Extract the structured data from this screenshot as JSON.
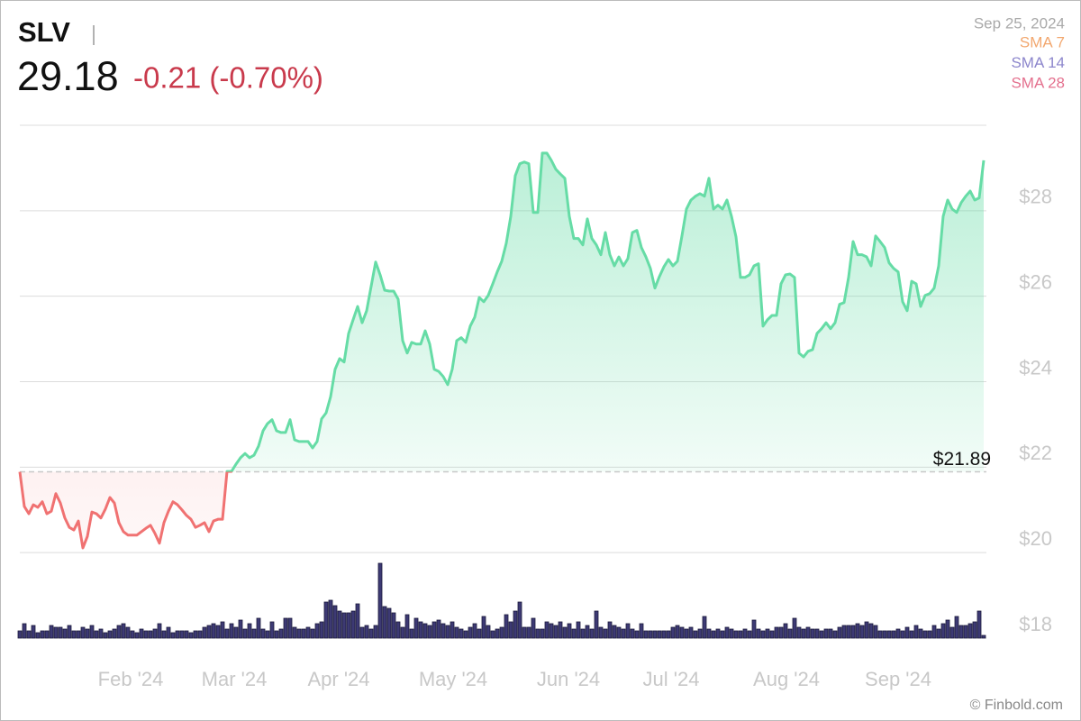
{
  "header": {
    "ticker": "SLV",
    "price": "29.18",
    "change": "-0.21 (-0.70%)",
    "date": "Sep 25, 2024"
  },
  "watermark": "© Finbold.com",
  "chart_data": {
    "type": "line",
    "indicators": [
      {
        "name": "SMA 7",
        "color": "#f2a76e"
      },
      {
        "name": "SMA 14",
        "color": "#8c86cc"
      },
      {
        "name": "SMA 28",
        "color": "#e4708e"
      }
    ],
    "series": [
      {
        "color": "#66dca6",
        "down_color": "#f07272",
        "values": [
          21.89,
          21.08,
          20.91,
          21.12,
          21.06,
          21.19,
          20.91,
          20.97,
          21.38,
          21.16,
          20.81,
          20.59,
          20.53,
          20.74,
          20.11,
          20.38,
          20.95,
          20.91,
          20.81,
          21.02,
          21.29,
          21.16,
          20.7,
          20.49,
          20.41,
          20.41,
          20.41,
          20.49,
          20.57,
          20.64,
          20.45,
          20.22,
          20.7,
          20.97,
          21.19,
          21.12,
          21.0,
          20.87,
          20.78,
          20.59,
          20.64,
          20.7,
          20.49,
          20.74,
          20.78,
          20.78,
          21.9,
          21.9,
          22.07,
          22.22,
          22.32,
          22.22,
          22.28,
          22.49,
          22.85,
          23.02,
          23.11,
          22.85,
          22.81,
          22.81,
          23.11,
          22.64,
          22.6,
          22.6,
          22.6,
          22.45,
          22.6,
          23.13,
          23.27,
          23.65,
          24.29,
          24.54,
          24.46,
          25.13,
          25.45,
          25.76,
          25.38,
          25.66,
          26.23,
          26.8,
          26.5,
          26.14,
          26.12,
          26.12,
          25.93,
          24.96,
          24.67,
          24.92,
          24.88,
          24.88,
          25.19,
          24.88,
          24.29,
          24.24,
          24.12,
          23.93,
          24.29,
          24.96,
          25.03,
          24.92,
          25.3,
          25.51,
          25.97,
          25.87,
          26.02,
          26.29,
          26.57,
          26.82,
          27.24,
          27.87,
          28.82,
          29.1,
          29.14,
          29.1,
          27.96,
          27.96,
          29.35,
          29.35,
          29.18,
          28.97,
          28.86,
          28.76,
          27.87,
          27.35,
          27.35,
          27.2,
          27.81,
          27.35,
          27.2,
          26.97,
          27.49,
          26.97,
          26.71,
          26.92,
          26.71,
          26.88,
          27.49,
          27.54,
          27.14,
          26.92,
          26.65,
          26.19,
          26.46,
          26.69,
          26.86,
          26.71,
          26.82,
          27.41,
          28.04,
          28.25,
          28.34,
          28.4,
          28.34,
          28.76,
          28.04,
          28.13,
          28.04,
          28.25,
          27.87,
          27.39,
          26.44,
          26.44,
          26.5,
          26.71,
          26.76,
          25.3,
          25.45,
          25.55,
          25.55,
          26.29,
          26.5,
          26.52,
          26.44,
          24.67,
          24.58,
          24.71,
          24.75,
          25.13,
          25.24,
          25.38,
          25.24,
          25.38,
          25.81,
          25.85,
          26.44,
          27.28,
          26.97,
          26.97,
          26.92,
          26.71,
          27.41,
          27.28,
          27.14,
          26.78,
          26.65,
          26.57,
          25.87,
          25.66,
          26.35,
          26.29,
          25.76,
          26.02,
          26.06,
          26.19,
          26.71,
          27.87,
          28.25,
          28.04,
          27.96,
          28.19,
          28.34,
          28.46,
          28.25,
          28.3,
          29.18
        ]
      }
    ],
    "volume": {
      "color": "#3d3a74",
      "values": [
        8,
        16,
        8,
        14,
        6,
        8,
        8,
        14,
        12,
        12,
        10,
        14,
        8,
        8,
        12,
        10,
        14,
        8,
        10,
        6,
        8,
        10,
        14,
        16,
        12,
        8,
        6,
        10,
        8,
        8,
        10,
        16,
        8,
        12,
        6,
        8,
        8,
        8,
        6,
        8,
        8,
        12,
        14,
        16,
        14,
        18,
        10,
        16,
        12,
        20,
        10,
        16,
        10,
        22,
        10,
        8,
        18,
        8,
        10,
        22,
        22,
        12,
        10,
        10,
        12,
        10,
        16,
        18,
        40,
        42,
        36,
        30,
        28,
        28,
        30,
        38,
        12,
        14,
        10,
        14,
        83,
        35,
        33,
        28,
        18,
        12,
        26,
        10,
        22,
        18,
        16,
        14,
        18,
        20,
        16,
        14,
        18,
        12,
        10,
        8,
        12,
        16,
        10,
        24,
        14,
        8,
        10,
        12,
        26,
        18,
        30,
        40,
        12,
        12,
        22,
        10,
        10,
        18,
        16,
        14,
        18,
        12,
        16,
        10,
        18,
        10,
        14,
        10,
        30,
        12,
        10,
        18,
        14,
        12,
        10,
        16,
        10,
        8,
        16,
        8,
        8,
        8,
        8,
        8,
        8,
        12,
        14,
        12,
        10,
        12,
        8,
        10,
        24,
        10,
        8,
        10,
        8,
        12,
        10,
        8,
        8,
        10,
        8,
        20,
        10,
        8,
        10,
        8,
        12,
        12,
        16,
        10,
        22,
        12,
        10,
        12,
        10,
        10,
        8,
        10,
        10,
        8,
        12,
        14,
        14,
        14,
        16,
        14,
        18,
        16,
        14,
        8,
        8,
        8,
        8,
        10,
        8,
        12,
        8,
        14,
        10,
        8,
        8,
        14,
        10,
        16,
        20,
        12,
        24,
        14,
        14,
        16,
        18,
        30,
        3
      ]
    },
    "baseline": {
      "value": 21.89,
      "label": "$21.89"
    },
    "ylim": [
      18,
      30
    ],
    "yticks": [
      {
        "value": 18,
        "label": "$18"
      },
      {
        "value": 20,
        "label": "$20"
      },
      {
        "value": 22,
        "label": "$22"
      },
      {
        "value": 24,
        "label": "$24"
      },
      {
        "value": 26,
        "label": "$26"
      },
      {
        "value": 28,
        "label": "$28"
      }
    ],
    "xticks": [
      {
        "value": 24.6,
        "label": "Feb '24"
      },
      {
        "value": 47.6,
        "label": "Mar '24"
      },
      {
        "value": 70.8,
        "label": "Apr '24"
      },
      {
        "value": 96.2,
        "label": "May '24"
      },
      {
        "value": 121.8,
        "label": "Jun '24"
      },
      {
        "value": 144.6,
        "label": "Jul '24"
      },
      {
        "value": 170.2,
        "label": "Aug '24"
      },
      {
        "value": 195,
        "label": "Sep '24"
      }
    ],
    "grid": true
  }
}
